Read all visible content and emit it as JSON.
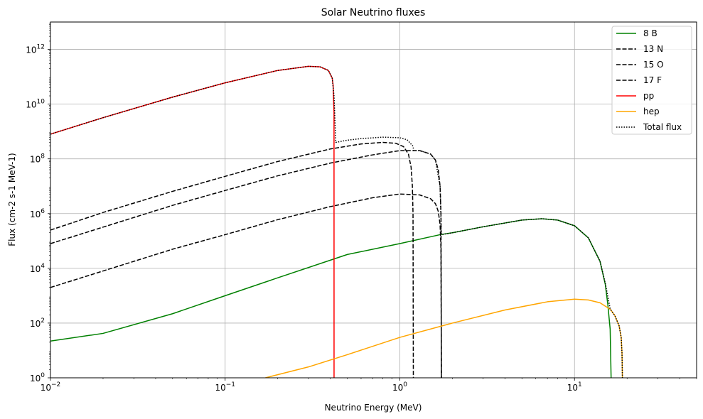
{
  "chart_data": {
    "type": "line",
    "title": "Solar Neutrino fluxes",
    "xlabel": "Neutrino Energy (MeV)",
    "ylabel": "Flux (cm-2 s-1 MeV-1)",
    "xscale": "log",
    "yscale": "log",
    "xlim": [
      0.01,
      50
    ],
    "ylim": [
      1,
      10000000000000.0
    ],
    "grid": true,
    "legend_position": "top-right",
    "x_ticks": [
      {
        "value": 0.01,
        "base": "10",
        "exp": "−2"
      },
      {
        "value": 0.1,
        "base": "10",
        "exp": "−1"
      },
      {
        "value": 1,
        "base": "10",
        "exp": "0"
      },
      {
        "value": 10,
        "base": "10",
        "exp": "1"
      }
    ],
    "y_ticks": [
      {
        "value": 1,
        "base": "10",
        "exp": "0"
      },
      {
        "value": 100,
        "base": "10",
        "exp": "2"
      },
      {
        "value": 10000,
        "base": "10",
        "exp": "4"
      },
      {
        "value": 1000000,
        "base": "10",
        "exp": "6"
      },
      {
        "value": 100000000,
        "base": "10",
        "exp": "8"
      },
      {
        "value": 10000000000,
        "base": "10",
        "exp": "10"
      },
      {
        "value": 1000000000000,
        "base": "10",
        "exp": "12"
      }
    ],
    "series": [
      {
        "name": "8 B",
        "color": "#008000",
        "dash": "solid",
        "points": [
          [
            0.01,
            22
          ],
          [
            0.02,
            42
          ],
          [
            0.05,
            220
          ],
          [
            0.1,
            1000
          ],
          [
            0.2,
            4500
          ],
          [
            0.5,
            32000
          ],
          [
            1,
            80000
          ],
          [
            1.7,
            170000
          ],
          [
            2,
            200000
          ],
          [
            3,
            330000
          ],
          [
            5,
            580000
          ],
          [
            6.5,
            650000
          ],
          [
            8,
            580000
          ],
          [
            10,
            360000
          ],
          [
            12,
            130000
          ],
          [
            14,
            18000
          ],
          [
            15,
            2600
          ],
          [
            15.5,
            500
          ],
          [
            16,
            60
          ],
          [
            16.2,
            1
          ]
        ]
      },
      {
        "name": "13 N",
        "color": "#000000",
        "dash": "dashed",
        "points": [
          [
            0.01,
            250000
          ],
          [
            0.02,
            1100000
          ],
          [
            0.05,
            6500000
          ],
          [
            0.1,
            23000000
          ],
          [
            0.2,
            80000000
          ],
          [
            0.4,
            230000000
          ],
          [
            0.6,
            350000000
          ],
          [
            0.8,
            400000000
          ],
          [
            0.95,
            370000000
          ],
          [
            1.05,
            280000000
          ],
          [
            1.12,
            150000000
          ],
          [
            1.16,
            50000000
          ],
          [
            1.18,
            10000000
          ],
          [
            1.19,
            1000000
          ],
          [
            1.195,
            1
          ]
        ]
      },
      {
        "name": "15 O",
        "color": "#000000",
        "dash": "dashed",
        "points": [
          [
            0.01,
            80000
          ],
          [
            0.02,
            320000
          ],
          [
            0.05,
            2000000
          ],
          [
            0.1,
            7000000
          ],
          [
            0.2,
            24000000
          ],
          [
            0.4,
            70000000
          ],
          [
            0.7,
            140000000
          ],
          [
            1,
            200000000
          ],
          [
            1.3,
            200000000
          ],
          [
            1.5,
            150000000
          ],
          [
            1.6,
            90000000
          ],
          [
            1.66,
            40000000
          ],
          [
            1.7,
            10000000
          ],
          [
            1.72,
            1000000
          ],
          [
            1.73,
            1
          ]
        ]
      },
      {
        "name": "17 F",
        "color": "#000000",
        "dash": "dashed",
        "points": [
          [
            0.01,
            2000
          ],
          [
            0.02,
            8000
          ],
          [
            0.05,
            50000
          ],
          [
            0.1,
            170000
          ],
          [
            0.2,
            600000
          ],
          [
            0.4,
            1800000
          ],
          [
            0.7,
            3800000
          ],
          [
            1,
            5200000
          ],
          [
            1.3,
            4800000
          ],
          [
            1.5,
            3500000
          ],
          [
            1.6,
            2300000
          ],
          [
            1.66,
            1200000
          ],
          [
            1.7,
            400000
          ],
          [
            1.72,
            50000
          ],
          [
            1.73,
            1
          ]
        ]
      },
      {
        "name": "pp",
        "color": "#ff0000",
        "dash": "solid",
        "points": [
          [
            0.01,
            800000000
          ],
          [
            0.02,
            3200000000
          ],
          [
            0.05,
            18000000000
          ],
          [
            0.1,
            60000000000
          ],
          [
            0.2,
            170000000000
          ],
          [
            0.3,
            240000000000
          ],
          [
            0.35,
            230000000000
          ],
          [
            0.39,
            170000000000
          ],
          [
            0.41,
            90000000000
          ],
          [
            0.415,
            50000000000
          ],
          [
            0.42,
            5000000000
          ],
          [
            0.4202,
            1
          ]
        ]
      },
      {
        "name": "hep",
        "color": "#ffa500",
        "dash": "solid",
        "points": [
          [
            0.17,
            1
          ],
          [
            0.3,
            2.5
          ],
          [
            0.5,
            7
          ],
          [
            1,
            30
          ],
          [
            2,
            100
          ],
          [
            4,
            300
          ],
          [
            7,
            600
          ],
          [
            10,
            750
          ],
          [
            12,
            700
          ],
          [
            14,
            550
          ],
          [
            16,
            320
          ],
          [
            17,
            190
          ],
          [
            18,
            80
          ],
          [
            18.5,
            30
          ],
          [
            18.7,
            8
          ],
          [
            18.8,
            1
          ]
        ]
      },
      {
        "name": "Total flux",
        "color": "#000000",
        "dash": "dotted",
        "points": [
          [
            0.01,
            800000000
          ],
          [
            0.02,
            3200000000
          ],
          [
            0.05,
            18000000000
          ],
          [
            0.1,
            60000000000
          ],
          [
            0.2,
            170000000000
          ],
          [
            0.3,
            240000000000
          ],
          [
            0.35,
            230000000000
          ],
          [
            0.39,
            170000000000
          ],
          [
            0.41,
            90000000000
          ],
          [
            0.42,
            20000000000
          ],
          [
            0.43,
            400000000
          ],
          [
            0.5,
            480000000
          ],
          [
            0.6,
            550000000
          ],
          [
            0.8,
            620000000
          ],
          [
            1,
            590000000
          ],
          [
            1.1,
            500000000
          ],
          [
            1.19,
            290000000
          ],
          [
            1.2,
            200000000
          ],
          [
            1.3,
            200000000
          ],
          [
            1.5,
            150000000
          ],
          [
            1.6,
            90000000
          ],
          [
            1.7,
            10000000
          ],
          [
            1.73,
            170000
          ],
          [
            2,
            200000
          ],
          [
            3,
            330000
          ],
          [
            5,
            580000
          ],
          [
            6.5,
            650000
          ],
          [
            8,
            580000
          ],
          [
            10,
            360000
          ],
          [
            12,
            130000
          ],
          [
            14,
            18000
          ],
          [
            15,
            2900
          ],
          [
            16,
            330
          ],
          [
            17,
            190
          ],
          [
            18,
            80
          ],
          [
            18.5,
            30
          ],
          [
            18.7,
            8
          ],
          [
            18.8,
            1
          ]
        ]
      }
    ]
  }
}
